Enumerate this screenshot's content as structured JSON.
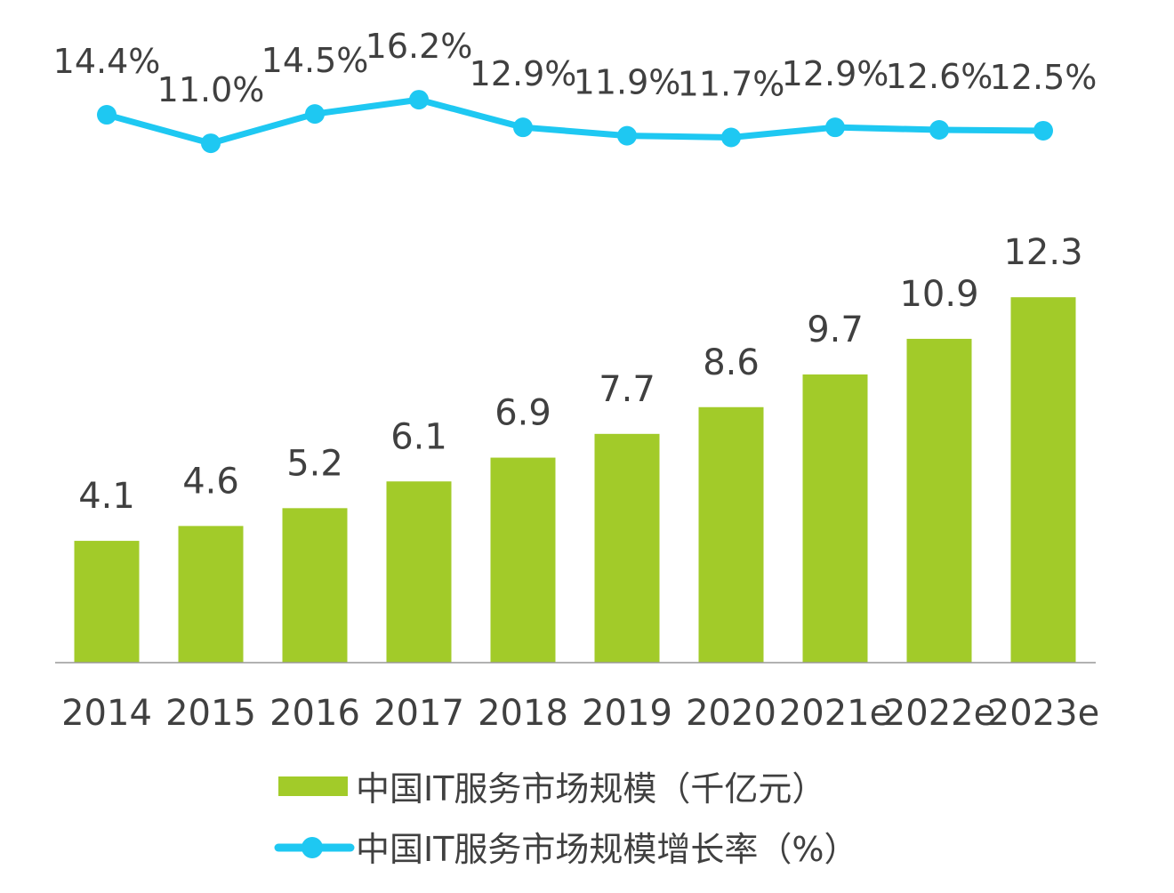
{
  "chart_data": {
    "type": "bar+line",
    "categories": [
      "2014",
      "2015",
      "2016",
      "2017",
      "2018",
      "2019",
      "2020",
      "2021e",
      "2022e",
      "2023e"
    ],
    "series": [
      {
        "name": "中国IT服务市场规模（千亿元）",
        "type": "bar",
        "color": "#a2cb29",
        "values": [
          4.1,
          4.6,
          5.2,
          6.1,
          6.9,
          7.7,
          8.6,
          9.7,
          10.9,
          12.3
        ],
        "labels": [
          "4.1",
          "4.6",
          "5.2",
          "6.1",
          "6.9",
          "7.7",
          "8.6",
          "9.7",
          "10.9",
          "12.3"
        ]
      },
      {
        "name": "中国IT服务市场规模增长率（%）",
        "type": "line",
        "color": "#1ec8f2",
        "values": [
          14.4,
          11.0,
          14.5,
          16.2,
          12.9,
          11.9,
          11.7,
          12.9,
          12.6,
          12.5
        ],
        "labels": [
          "14.4%",
          "11.0%",
          "14.5%",
          "16.2%",
          "12.9%",
          "11.9%",
          "11.7%",
          "12.9%",
          "12.6%",
          "12.5%"
        ]
      }
    ],
    "grid": false,
    "legend_position": "bottom",
    "text_color": "#404040"
  }
}
